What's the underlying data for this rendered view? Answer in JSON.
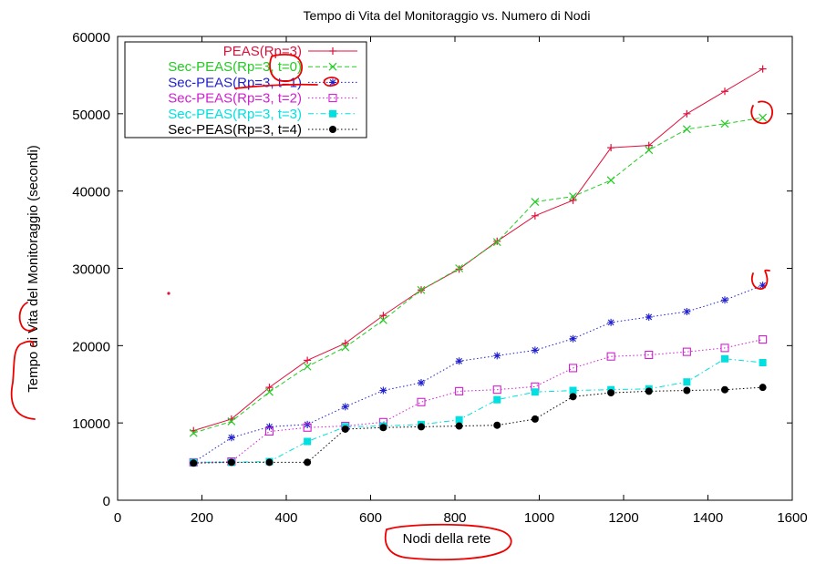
{
  "chart_data": {
    "type": "line",
    "title": "Tempo di Vita del Monitoraggio vs. Numero di Nodi",
    "xlabel": "Nodi della rete",
    "ylabel": "Tempo di Vita del Monitoraggio (secondi)",
    "xlim": [
      0,
      1600
    ],
    "ylim": [
      0,
      60000
    ],
    "xticks": [
      0,
      200,
      400,
      600,
      800,
      1000,
      1200,
      1400,
      1600
    ],
    "yticks": [
      0,
      10000,
      20000,
      30000,
      40000,
      50000,
      60000
    ],
    "grid": false,
    "legend_position": "top-left",
    "x": [
      180,
      270,
      360,
      450,
      540,
      630,
      720,
      810,
      900,
      990,
      1080,
      1170,
      1260,
      1350,
      1440,
      1530
    ],
    "series": [
      {
        "name": "PEAS(Rp=3)",
        "color": "#e0103c",
        "marker": "plus",
        "dash": "solid",
        "values": [
          9000,
          10500,
          14600,
          18100,
          20300,
          23900,
          27200,
          29900,
          33500,
          36800,
          38800,
          45600,
          45900,
          50000,
          52900,
          55800
        ]
      },
      {
        "name": "Sec-PEAS(Rp=3, t=0)",
        "color": "#22cc22",
        "marker": "cross",
        "dash": "dashed",
        "values": [
          8700,
          10200,
          14000,
          17300,
          19800,
          23300,
          27200,
          30000,
          33400,
          38600,
          39300,
          41400,
          45300,
          48000,
          48700,
          49500
        ]
      },
      {
        "name": "Sec-PEAS(Rp=3, t=1)",
        "color": "#1f1fcf",
        "marker": "star",
        "dash": "dotted",
        "values": [
          4900,
          8100,
          9500,
          9800,
          12100,
          14200,
          15200,
          18000,
          18700,
          19400,
          20900,
          23000,
          23700,
          24400,
          25900,
          27800
        ]
      },
      {
        "name": "Sec-PEAS(Rp=3, t=2)",
        "color": "#d020d0",
        "marker": "square-open",
        "dash": "dotted",
        "values": [
          4900,
          5000,
          8900,
          9400,
          9600,
          10100,
          12700,
          14100,
          14300,
          14700,
          17100,
          18600,
          18800,
          19200,
          19700,
          20800
        ]
      },
      {
        "name": "Sec-PEAS(Rp=3, t=3)",
        "color": "#00e0e0",
        "marker": "square-filled",
        "dash": "dashdot",
        "values": [
          4900,
          4900,
          5000,
          7600,
          9500,
          9600,
          9800,
          10400,
          13000,
          14000,
          14200,
          14300,
          14400,
          15300,
          18300,
          17800
        ]
      },
      {
        "name": "Sec-PEAS(Rp=3, t=4)",
        "color": "#000000",
        "marker": "circle-filled",
        "dash": "dotted",
        "values": [
          4800,
          4900,
          4900,
          4900,
          9200,
          9400,
          9500,
          9600,
          9700,
          10500,
          13400,
          13900,
          14100,
          14200,
          14300,
          14600
        ]
      }
    ]
  },
  "annotation_color": "#ee0000"
}
